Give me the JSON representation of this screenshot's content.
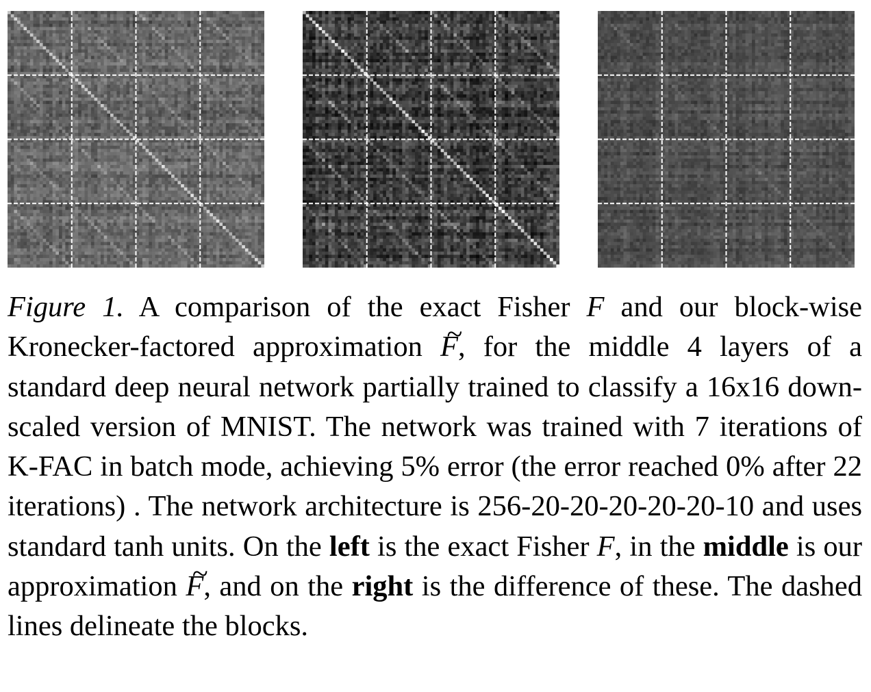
{
  "figure": {
    "panels": [
      {
        "name": "exact-fisher",
        "description": "left"
      },
      {
        "name": "kfac-approximation",
        "description": "middle"
      },
      {
        "name": "difference",
        "description": "right"
      }
    ],
    "caption": {
      "label": "Figure 1.",
      "t1": "A comparison of the exact Fisher",
      "F": "F",
      "t2": "and our block-wise Kronecker-factored approximation",
      "Ftilde": "F",
      "tilde": "~",
      "t3": ", for the middle 4 layers of a standard deep neural network partially trained to classify a 16x16 down-scaled version of MNIST. The network was trained with 7 iterations of K-FAC in batch mode, achieving 5% error (the error reached 0% after 22 iterations) . The network architecture is 256-20-20-20-20-20-10 and uses standard tanh units. On the",
      "left": "left",
      "t4": "is the exact Fisher",
      "t5": ", in the",
      "middle": "middle",
      "t6": "is our approximation",
      "t7": ", and on the",
      "right": "right",
      "t8": "is the difference of these. The dashed lines delineate the blocks."
    }
  }
}
